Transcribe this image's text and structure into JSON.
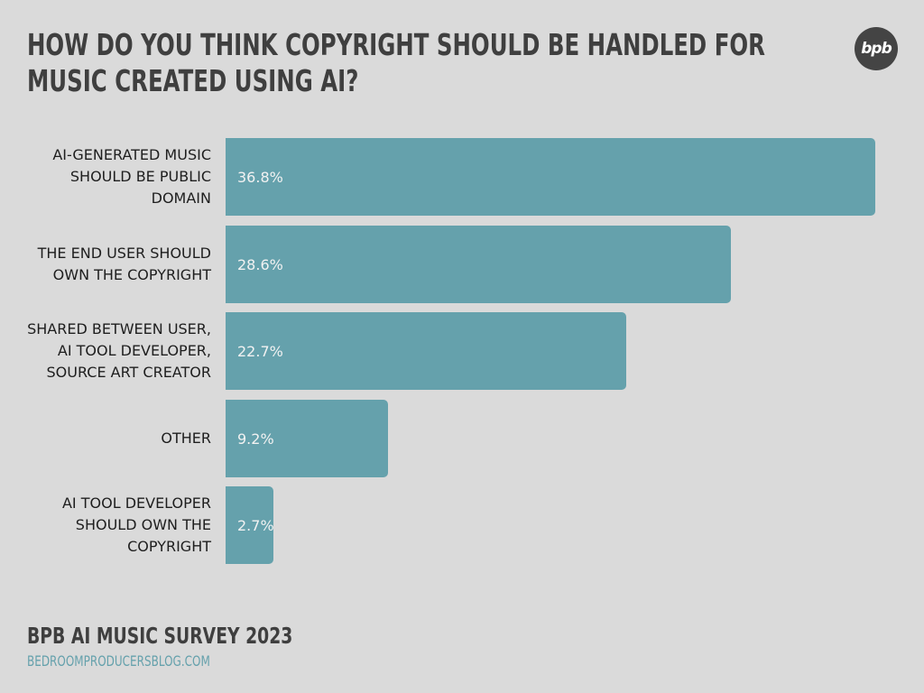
{
  "header": {
    "title": "HOW DO YOU THINK COPYRIGHT SHOULD BE HANDLED FOR MUSIC CREATED USING AI?",
    "logo_text": "bpb"
  },
  "chart_data": {
    "type": "bar",
    "orientation": "horizontal",
    "categories": [
      "AI-GENERATED MUSIC\nSHOULD BE PUBLIC\nDOMAIN",
      "THE END USER SHOULD\nOWN THE COPYRIGHT",
      "SHARED BETWEEN USER,\nAI TOOL DEVELOPER,\nSOURCE ART CREATOR",
      "OTHER",
      "AI TOOL DEVELOPER\nSHOULD OWN THE\nCOPYRIGHT"
    ],
    "values": [
      36.8,
      28.6,
      22.7,
      9.2,
      2.7
    ],
    "value_labels": [
      "36.8%",
      "28.6%",
      "22.7%",
      "9.2%",
      "2.7%"
    ],
    "unit": "%",
    "bar_color": "#65a1ac",
    "grid": false,
    "legend": "none"
  },
  "footer": {
    "title": "BPB AI MUSIC SURVEY 2023",
    "url": "BEDROOMPRODUCERSBLOG.COM"
  },
  "colors": {
    "background": "#dadada",
    "accent": "#65a1ac",
    "title": "#3f3f3f"
  }
}
